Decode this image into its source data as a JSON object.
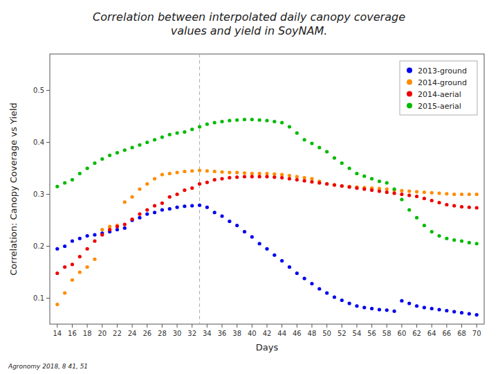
{
  "chart_data": {
    "type": "scatter",
    "title": "Correlation between interpolated daily canopy coverage\nvalues and yield in SoyNAM.",
    "x_label": "Days",
    "y_label": "Correlation: Canopy Coverage vs Yield",
    "caption": "Agronomy 2018, 8 41, 51",
    "vlines": [
      33
    ],
    "xlim": [
      13,
      71
    ],
    "ylim": [
      0.05,
      0.57
    ],
    "xticks": [
      14,
      16,
      18,
      20,
      22,
      24,
      26,
      28,
      30,
      32,
      34,
      36,
      38,
      40,
      42,
      44,
      46,
      48,
      50,
      52,
      54,
      56,
      58,
      60,
      62,
      64,
      66,
      68,
      70
    ],
    "yticks": [
      0.1,
      0.2,
      0.3,
      0.4,
      0.5
    ],
    "grid": false,
    "legend": "upper right",
    "x": [
      14,
      15,
      16,
      17,
      18,
      19,
      20,
      21,
      22,
      23,
      24,
      25,
      26,
      27,
      28,
      29,
      30,
      31,
      32,
      33,
      34,
      35,
      36,
      37,
      38,
      39,
      40,
      41,
      42,
      43,
      44,
      45,
      46,
      47,
      48,
      49,
      50,
      51,
      52,
      53,
      54,
      55,
      56,
      57,
      58,
      59,
      60,
      61,
      62,
      63,
      64,
      65,
      66,
      67,
      68,
      69,
      70
    ],
    "series": [
      {
        "name": "2013-ground",
        "color": "#0000EE",
        "values": [
          0.195,
          0.2,
          0.21,
          0.215,
          0.22,
          0.222,
          0.225,
          0.228,
          0.232,
          0.235,
          0.25,
          0.255,
          0.262,
          0.265,
          0.27,
          0.272,
          0.275,
          0.277,
          0.278,
          0.279,
          0.275,
          0.265,
          0.258,
          0.248,
          0.24,
          0.228,
          0.218,
          0.205,
          0.195,
          0.183,
          0.172,
          0.16,
          0.148,
          0.138,
          0.128,
          0.118,
          0.11,
          0.102,
          0.096,
          0.09,
          0.085,
          0.082,
          0.08,
          0.078,
          0.077,
          0.075,
          0.095,
          0.09,
          0.085,
          0.082,
          0.08,
          0.078,
          0.076,
          0.074,
          0.072,
          0.07,
          0.068
        ]
      },
      {
        "name": "2014-ground",
        "color": "#FF8C00",
        "values": [
          0.088,
          0.11,
          0.135,
          0.15,
          0.16,
          0.175,
          0.232,
          0.238,
          0.24,
          0.285,
          0.295,
          0.31,
          0.32,
          0.33,
          0.338,
          0.34,
          0.342,
          0.344,
          0.345,
          0.346,
          0.345,
          0.344,
          0.343,
          0.342,
          0.342,
          0.341,
          0.34,
          0.34,
          0.34,
          0.339,
          0.338,
          0.336,
          0.334,
          0.332,
          0.33,
          0.325,
          0.32,
          0.318,
          0.316,
          0.315,
          0.314,
          0.313,
          0.312,
          0.311,
          0.31,
          0.308,
          0.307,
          0.306,
          0.305,
          0.304,
          0.303,
          0.302,
          0.301,
          0.3,
          0.3,
          0.3,
          0.3
        ]
      },
      {
        "name": "2014-aerial",
        "color": "#EE0000",
        "values": [
          0.148,
          0.16,
          0.165,
          0.18,
          0.195,
          0.21,
          0.222,
          0.232,
          0.238,
          0.242,
          0.252,
          0.262,
          0.27,
          0.278,
          0.283,
          0.295,
          0.3,
          0.308,
          0.312,
          0.32,
          0.323,
          0.328,
          0.33,
          0.332,
          0.333,
          0.334,
          0.334,
          0.334,
          0.334,
          0.333,
          0.332,
          0.33,
          0.328,
          0.326,
          0.324,
          0.322,
          0.32,
          0.318,
          0.316,
          0.314,
          0.312,
          0.31,
          0.308,
          0.306,
          0.304,
          0.302,
          0.3,
          0.298,
          0.296,
          0.292,
          0.288,
          0.284,
          0.28,
          0.278,
          0.276,
          0.275,
          0.274
        ]
      },
      {
        "name": "2015-aerial",
        "color": "#00BB00",
        "values": [
          0.315,
          0.322,
          0.328,
          0.34,
          0.35,
          0.36,
          0.368,
          0.375,
          0.38,
          0.385,
          0.39,
          0.395,
          0.4,
          0.405,
          0.41,
          0.415,
          0.418,
          0.42,
          0.425,
          0.43,
          0.435,
          0.438,
          0.44,
          0.442,
          0.443,
          0.444,
          0.444,
          0.443,
          0.442,
          0.44,
          0.438,
          0.43,
          0.418,
          0.405,
          0.398,
          0.39,
          0.382,
          0.37,
          0.36,
          0.35,
          0.34,
          0.335,
          0.33,
          0.325,
          0.322,
          0.31,
          0.29,
          0.27,
          0.255,
          0.24,
          0.228,
          0.22,
          0.215,
          0.212,
          0.21,
          0.207,
          0.205
        ]
      }
    ]
  }
}
